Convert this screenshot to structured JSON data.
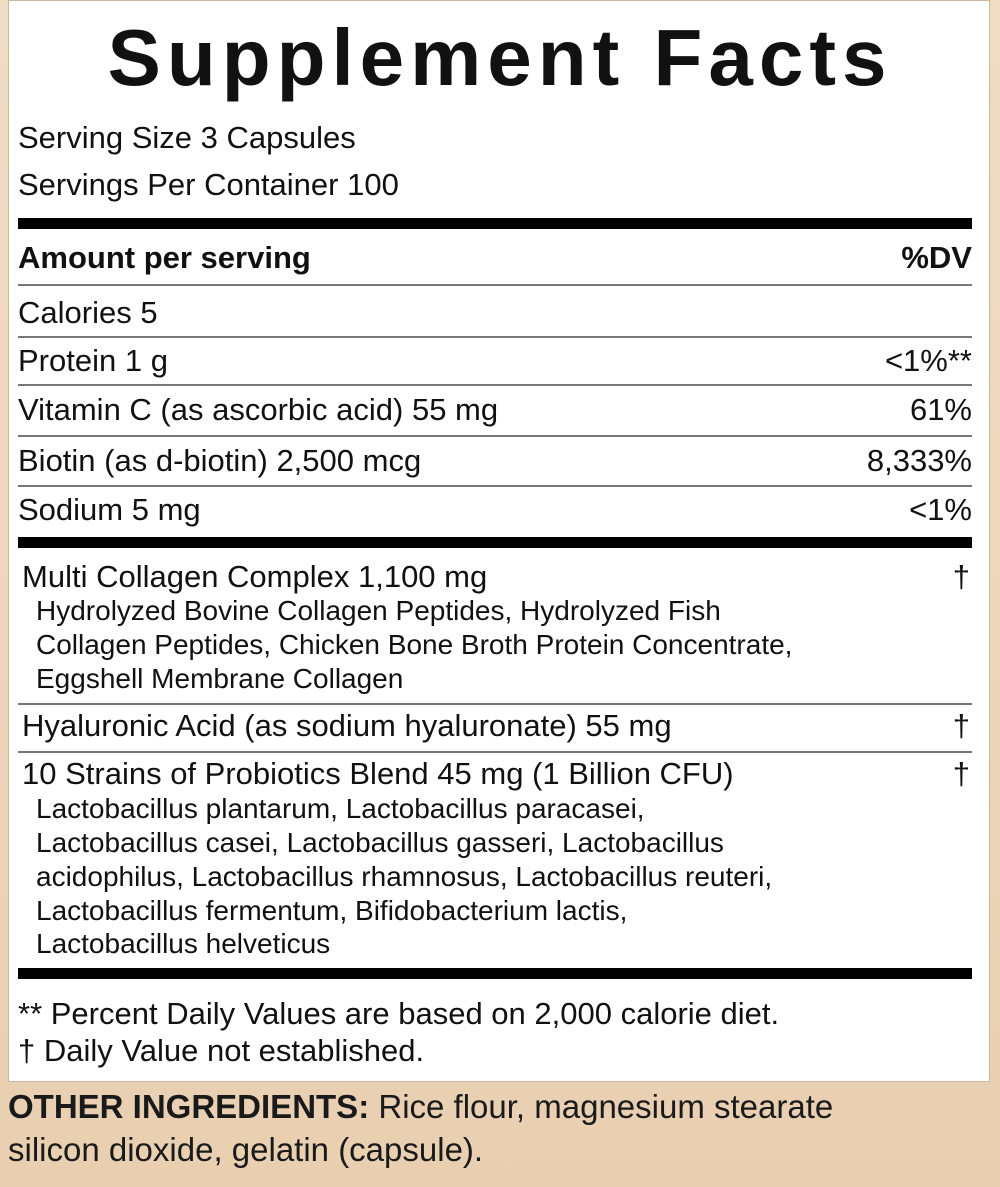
{
  "title": "Supplement Facts",
  "serving_size": "Serving Size 3 Capsules",
  "servings_per_container": "Servings Per Container 100",
  "header": {
    "amount": "Amount per serving",
    "dv": "%DV"
  },
  "nutrients": [
    {
      "name": "Calories 5",
      "dv": ""
    },
    {
      "name": "Protein 1 g",
      "dv": "<1%**"
    },
    {
      "name": "Vitamin C (as ascorbic acid) 55 mg",
      "dv": "61%"
    },
    {
      "name": "Biotin (as d-biotin) 2,500 mcg",
      "dv": "8,333%"
    },
    {
      "name": "Sodium 5 mg",
      "dv": "<1%"
    }
  ],
  "blends": [
    {
      "name": "Multi Collagen Complex 1,100 mg",
      "dv": "†",
      "details": [
        "Hydrolyzed Bovine Collagen Peptides, Hydrolyzed Fish",
        "Collagen Peptides, Chicken Bone Broth Protein Concentrate,",
        "Eggshell Membrane Collagen"
      ]
    },
    {
      "name": "Hyaluronic Acid (as sodium hyaluronate) 55 mg",
      "dv": "†",
      "details": []
    },
    {
      "name": "10 Strains of Probiotics Blend 45 mg (1 Billion CFU)",
      "dv": "†",
      "details": [
        "Lactobacillus plantarum, Lactobacillus paracasei,",
        "Lactobacillus casei, Lactobacillus gasseri, Lactobacillus",
        "acidophilus, Lactobacillus rhamnosus, Lactobacillus reuteri,",
        "Lactobacillus fermentum, Bifidobacterium lactis,",
        "Lactobacillus helveticus"
      ]
    }
  ],
  "footnotes": [
    "** Percent Daily Values are based on 2,000 calorie diet.",
    "† Daily Value not established."
  ],
  "other_ingredients": {
    "label": "OTHER INGREDIENTS:",
    "line1": " Rice flour, magnesium stearate",
    "line2": "silicon dioxide, gelatin (capsule)."
  }
}
